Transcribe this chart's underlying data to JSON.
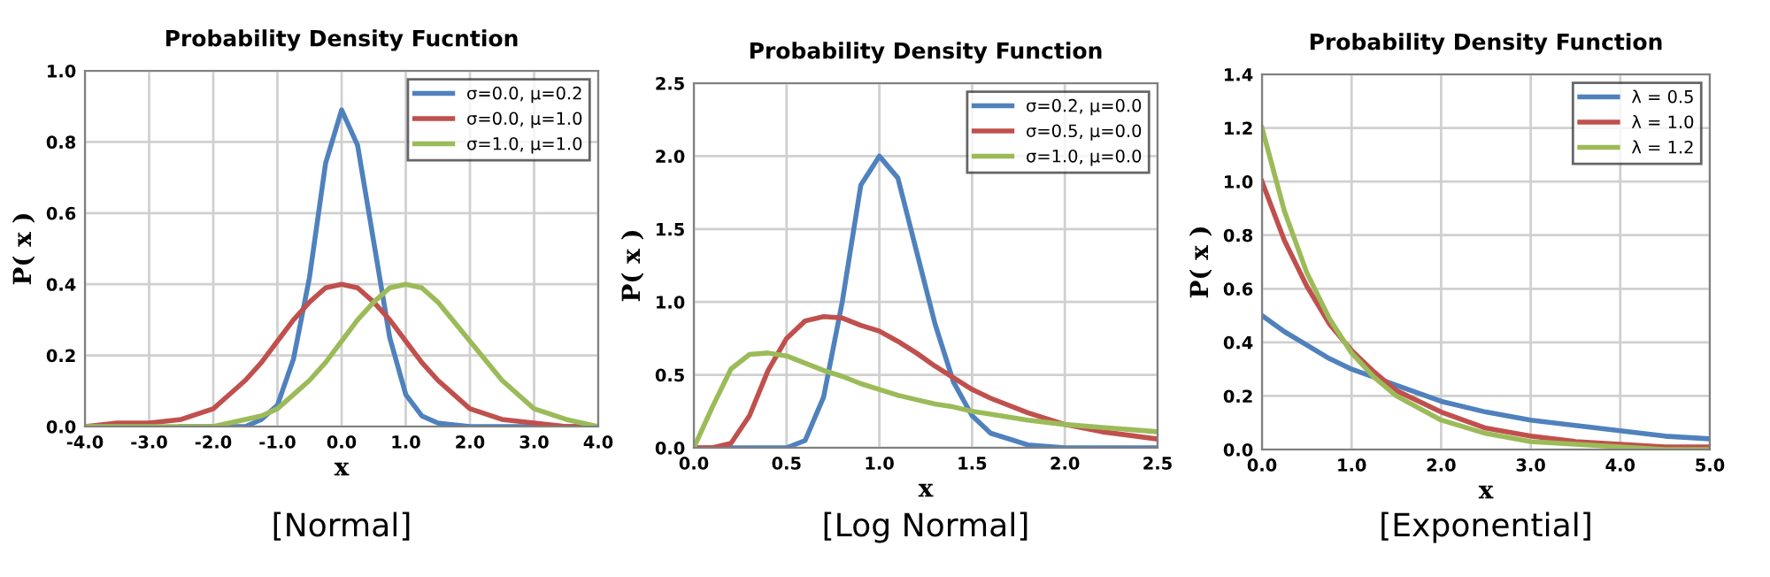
{
  "chart_data": [
    {
      "type": "line",
      "title": "Probability Density Fucntion",
      "xlabel": "x",
      "ylabel": "P( x )",
      "annotations": [
        "[Normal]"
      ],
      "x": [
        -4,
        -3.5,
        -3,
        -2.5,
        -2,
        -1.5,
        -1.25,
        -1,
        -0.75,
        -0.5,
        -0.25,
        0,
        0.25,
        0.5,
        0.75,
        1,
        1.25,
        1.5,
        2,
        2.5,
        3,
        3.5,
        4
      ],
      "series": [
        {
          "name": "σ=0.0, μ=0.2",
          "color": "#4f81bd",
          "values": [
            null,
            null,
            null,
            0,
            0,
            0,
            0.02,
            0.06,
            0.19,
            0.42,
            0.74,
            0.89,
            0.79,
            0.52,
            0.25,
            0.09,
            0.03,
            0.01,
            0,
            0,
            0,
            0,
            0
          ]
        },
        {
          "name": "σ=0.0, μ=1.0",
          "color": "#c0504d",
          "values": [
            0,
            0.01,
            0.01,
            0.02,
            0.05,
            0.13,
            0.18,
            0.24,
            0.3,
            0.35,
            0.39,
            0.4,
            0.39,
            0.35,
            0.3,
            0.24,
            0.18,
            0.13,
            0.05,
            0.02,
            0.01,
            0,
            0
          ]
        },
        {
          "name": "σ=1.0, μ=1.0",
          "color": "#9bbb59",
          "values": [
            0,
            0,
            0,
            0,
            0,
            0.02,
            0.03,
            0.05,
            0.09,
            0.13,
            0.18,
            0.24,
            0.3,
            0.35,
            0.39,
            0.4,
            0.39,
            0.35,
            0.24,
            0.13,
            0.05,
            0.02,
            0
          ]
        }
      ],
      "xlim": [
        -4,
        4
      ],
      "xticks": [
        {
          "value": -4,
          "label": "-4.0"
        },
        {
          "value": -3,
          "label": "-3.0"
        },
        {
          "value": -2,
          "label": "-2.0"
        },
        {
          "value": -1,
          "label": "-1.0"
        },
        {
          "value": 0,
          "label": "0.0"
        },
        {
          "value": 1,
          "label": "1.0"
        },
        {
          "value": 2,
          "label": "2.0"
        },
        {
          "value": 3,
          "label": "3.0"
        },
        {
          "value": 4,
          "label": "4.0"
        }
      ],
      "ylim": [
        0,
        1
      ],
      "yticks": [
        {
          "value": 0,
          "label": "0.0"
        },
        0.2,
        0.4,
        0.6,
        0.8,
        {
          "value": 1,
          "label": "1.0"
        }
      ],
      "grid": true,
      "legend": "top right",
      "marker": "none",
      "line_style": "solid"
    },
    {
      "type": "line",
      "title": "Probability Density Function",
      "xlabel": "x",
      "ylabel": "P( x )",
      "annotations": [
        "[Log Normal]"
      ],
      "x": [
        0,
        0.1,
        0.2,
        0.3,
        0.4,
        0.5,
        0.6,
        0.7,
        0.8,
        0.9,
        1.0,
        1.1,
        1.2,
        1.3,
        1.4,
        1.5,
        1.6,
        1.8,
        2.0,
        2.2,
        2.5
      ],
      "series": [
        {
          "name": "σ=0.2, μ=0.0",
          "color": "#4f81bd",
          "values": [
            0,
            0,
            0,
            0,
            0,
            0,
            0.05,
            0.35,
            1.0,
            1.8,
            2.0,
            1.85,
            1.35,
            0.85,
            0.45,
            0.22,
            0.1,
            0.02,
            0,
            0,
            0
          ]
        },
        {
          "name": "σ=0.5, μ=0.0",
          "color": "#c0504d",
          "values": [
            0,
            0,
            0.03,
            0.22,
            0.53,
            0.75,
            0.87,
            0.9,
            0.89,
            0.84,
            0.8,
            0.73,
            0.65,
            0.56,
            0.48,
            0.4,
            0.34,
            0.24,
            0.16,
            0.11,
            0.06
          ]
        },
        {
          "name": "σ=1.0, μ=0.0",
          "color": "#9bbb59",
          "values": [
            0,
            0.28,
            0.54,
            0.64,
            0.65,
            0.63,
            0.58,
            0.53,
            0.49,
            0.44,
            0.4,
            0.36,
            0.33,
            0.3,
            0.28,
            0.25,
            0.23,
            0.19,
            0.16,
            0.14,
            0.11
          ]
        }
      ],
      "xlim": [
        0,
        2.5
      ],
      "xticks": [
        {
          "value": 0,
          "label": "0.0"
        },
        0.5,
        {
          "value": 1,
          "label": "1.0"
        },
        1.5,
        {
          "value": 2,
          "label": "2.0"
        },
        2.5
      ],
      "ylim": [
        0,
        2.5
      ],
      "yticks": [
        {
          "value": 0,
          "label": "0.0"
        },
        0.5,
        {
          "value": 1,
          "label": "1.0"
        },
        1.5,
        {
          "value": 2,
          "label": "2.0"
        },
        2.5
      ],
      "grid": true,
      "legend": "top right",
      "marker": "none",
      "line_style": "solid"
    },
    {
      "type": "line",
      "title": "Probability Density Function",
      "xlabel": "x",
      "ylabel": "P( x )",
      "annotations": [
        "[Exponential]"
      ],
      "x": [
        0,
        0.25,
        0.5,
        0.75,
        1,
        1.25,
        1.5,
        2,
        2.5,
        3,
        3.5,
        4,
        4.5,
        5
      ],
      "series": [
        {
          "name": "λ = 0.5",
          "color": "#4f81bd",
          "values": [
            0.5,
            0.44,
            0.39,
            0.34,
            0.3,
            0.27,
            0.24,
            0.18,
            0.14,
            0.11,
            0.09,
            0.07,
            0.05,
            0.04
          ]
        },
        {
          "name": "λ = 1.0",
          "color": "#c0504d",
          "values": [
            1.0,
            0.78,
            0.61,
            0.47,
            0.37,
            0.29,
            0.22,
            0.14,
            0.08,
            0.05,
            0.03,
            0.02,
            0.01,
            0.01
          ]
        },
        {
          "name": "λ = 1.2",
          "color": "#9bbb59",
          "values": [
            1.2,
            0.89,
            0.66,
            0.49,
            0.36,
            0.27,
            0.2,
            0.11,
            0.06,
            0.03,
            0.02,
            0.01,
            0,
            0
          ]
        }
      ],
      "xlim": [
        0,
        5
      ],
      "xticks": [
        {
          "value": 0,
          "label": "0.0"
        },
        {
          "value": 1,
          "label": "1.0"
        },
        {
          "value": 2,
          "label": "2.0"
        },
        {
          "value": 3,
          "label": "3.0"
        },
        {
          "value": 4,
          "label": "4.0"
        },
        {
          "value": 5,
          "label": "5.0"
        }
      ],
      "ylim": [
        0,
        1.4
      ],
      "yticks": [
        {
          "value": 0,
          "label": "0.0"
        },
        0.2,
        0.4,
        0.6,
        0.8,
        {
          "value": 1,
          "label": "1.0"
        },
        1.2,
        1.4
      ],
      "grid": true,
      "legend": "top right",
      "marker": "none",
      "line_style": "solid"
    }
  ]
}
